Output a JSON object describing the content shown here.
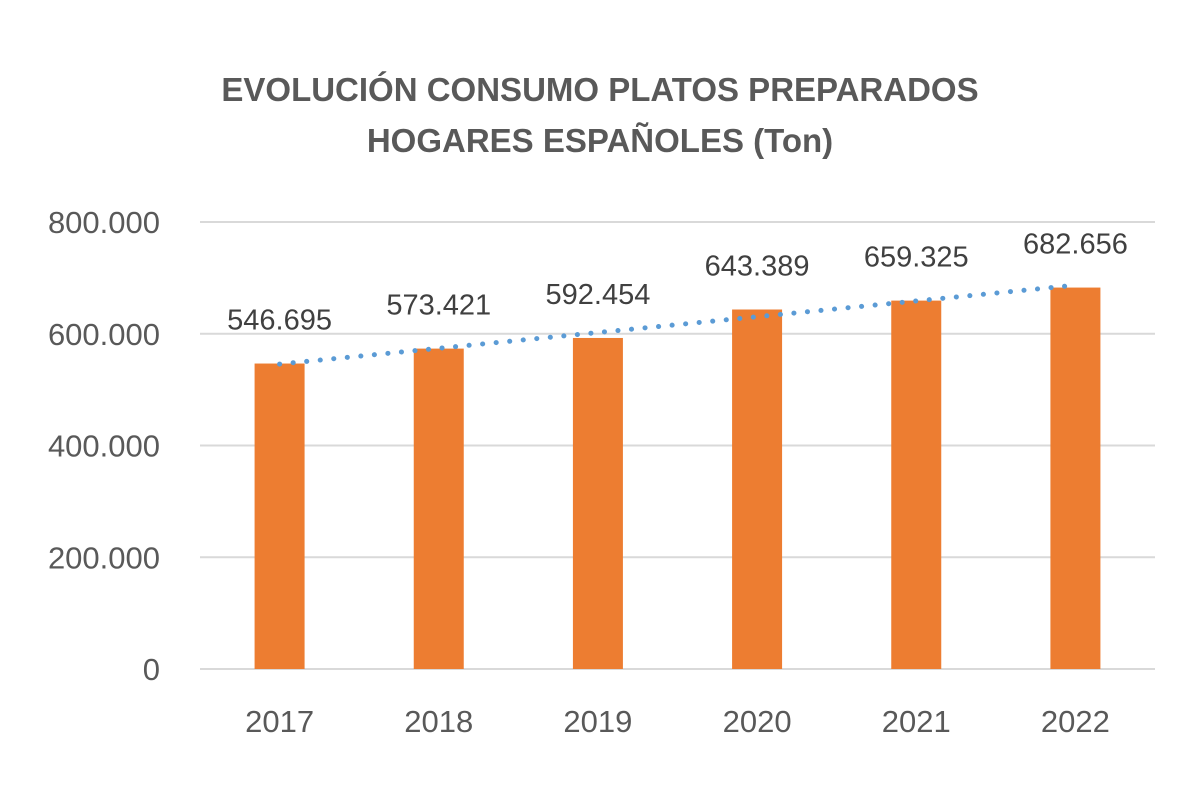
{
  "chart_data": {
    "type": "bar",
    "title": "EVOLUCIÓN CONSUMO PLATOS PREPARADOS HOGARES ESPAÑOLES (Ton)",
    "title_lines": [
      "EVOLUCIÓN CONSUMO PLATOS PREPARADOS",
      "HOGARES ESPAÑOLES (Ton)"
    ],
    "categories": [
      "2017",
      "2018",
      "2019",
      "2020",
      "2021",
      "2022"
    ],
    "values": [
      546695,
      573421,
      592454,
      643389,
      659325,
      682656
    ],
    "data_labels": [
      "546.695",
      "573.421",
      "592.454",
      "643.389",
      "659.325",
      "682.656"
    ],
    "xlabel": "",
    "ylabel": "",
    "ylim": [
      0,
      800000
    ],
    "yticks": [
      0,
      200000,
      400000,
      600000,
      800000
    ],
    "ytick_labels": [
      "0",
      "200.000",
      "400.000",
      "600.000",
      "800.000"
    ],
    "grid": true,
    "legend": "none",
    "trendline": {
      "type": "linear",
      "style": "dotted"
    },
    "colors": {
      "bar": "#ED7D31",
      "trendline": "#5B9BD5",
      "grid": "#D9D9D9"
    }
  }
}
